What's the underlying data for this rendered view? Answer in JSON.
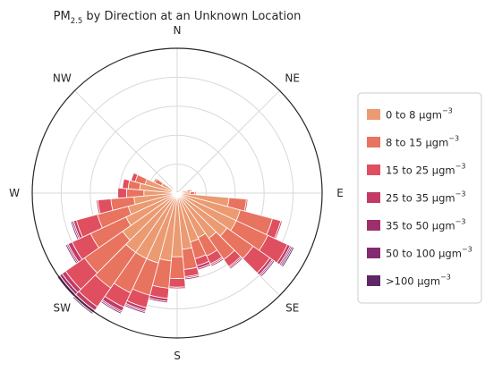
{
  "chart_data": {
    "type": "windrose",
    "title": {
      "prefix": "PM",
      "subscript": "2.5",
      "suffix": " by Direction at an Unknown Location"
    },
    "direction_labels": [
      "N",
      "NE",
      "E",
      "SE",
      "S",
      "SW",
      "W",
      "NW"
    ],
    "direction_angles": [
      0,
      45,
      90,
      135,
      180,
      225,
      270,
      315
    ],
    "radial_range": [
      0,
      10
    ],
    "radial_gridlines": [
      2,
      4,
      6,
      8,
      10
    ],
    "grid": true,
    "legend_position": "right",
    "bin_width_deg": 10,
    "bins": [
      {
        "label": "0 to 8 µgm",
        "sup": "−3",
        "color": "#eb9a72"
      },
      {
        "label": "8 to 15 µgm",
        "sup": "−3",
        "color": "#e8735f"
      },
      {
        "label": "15 to 25 µgm",
        "sup": "−3",
        "color": "#df4f5f"
      },
      {
        "label": "25 to 35 µgm",
        "sup": "−3",
        "color": "#c43a66"
      },
      {
        "label": "35 to 50 µgm",
        "sup": "−3",
        "color": "#9e2f6b"
      },
      {
        "label": "50 to 100 µgm",
        "sup": "−3",
        "color": "#832b6e"
      },
      {
        "label": ">100 µgm",
        "sup": "−3",
        "color": "#5e2765"
      }
    ],
    "directions": [
      {
        "angle": 70,
        "values": [
          0.3,
          0.2,
          0,
          0,
          0,
          0,
          0
        ]
      },
      {
        "angle": 80,
        "values": [
          0.7,
          0.2,
          0.1,
          0,
          0,
          0,
          0
        ]
      },
      {
        "angle": 90,
        "values": [
          0.9,
          0.3,
          0.1,
          0,
          0,
          0,
          0
        ]
      },
      {
        "angle": 100,
        "values": [
          3.6,
          1.2,
          0.1,
          0,
          0,
          0,
          0
        ]
      },
      {
        "angle": 110,
        "values": [
          4.5,
          2.3,
          0.6,
          0.1,
          0,
          0,
          0
        ]
      },
      {
        "angle": 120,
        "values": [
          4.5,
          2.4,
          1.5,
          0.2,
          0.1,
          0.1,
          0.1
        ]
      },
      {
        "angle": 130,
        "values": [
          4.2,
          2.2,
          1.4,
          0.2,
          0.1,
          0.1,
          0
        ]
      },
      {
        "angle": 140,
        "values": [
          3.8,
          1.8,
          0.6,
          0.1,
          0.1,
          0,
          0
        ]
      },
      {
        "angle": 150,
        "values": [
          3.4,
          1.4,
          0.6,
          0.1,
          0.1,
          0,
          0
        ]
      },
      {
        "angle": 160,
        "values": [
          3.5,
          1.2,
          0.5,
          0.2,
          0.1,
          0,
          0
        ]
      },
      {
        "angle": 170,
        "values": [
          3.9,
          1.4,
          0.5,
          0.1,
          0.1,
          0,
          0
        ]
      },
      {
        "angle": 180,
        "values": [
          4.4,
          1.5,
          0.6,
          0.1,
          0,
          0,
          0
        ]
      },
      {
        "angle": 190,
        "values": [
          4.7,
          1.9,
          0.7,
          0.2,
          0.1,
          0,
          0
        ]
      },
      {
        "angle": 200,
        "values": [
          5.0,
          2.3,
          0.9,
          0.2,
          0.1,
          0.1,
          0
        ]
      },
      {
        "angle": 210,
        "values": [
          5.0,
          2.6,
          1.1,
          0.3,
          0.1,
          0.1,
          0
        ]
      },
      {
        "angle": 220,
        "values": [
          5.0,
          3.0,
          1.6,
          0.3,
          0.1,
          0.1,
          0.1
        ]
      },
      {
        "angle": 230,
        "values": [
          4.6,
          3.2,
          1.6,
          0.3,
          0.2,
          0.1,
          0.1
        ]
      },
      {
        "angle": 240,
        "values": [
          3.9,
          2.7,
          1.4,
          0.3,
          0.1,
          0.1,
          0
        ]
      },
      {
        "angle": 250,
        "values": [
          3.5,
          2.2,
          1.5,
          0.2,
          0.1,
          0.1,
          0
        ]
      },
      {
        "angle": 260,
        "values": [
          3.0,
          1.6,
          0.9,
          0.1,
          0,
          0,
          0
        ]
      },
      {
        "angle": 270,
        "values": [
          2.3,
          1.2,
          0.6,
          0,
          0,
          0,
          0
        ]
      },
      {
        "angle": 280,
        "values": [
          2.6,
          0.8,
          0.4,
          0,
          0,
          0,
          0
        ]
      },
      {
        "angle": 290,
        "values": [
          2.3,
          0.7,
          0.3,
          0,
          0,
          0,
          0
        ]
      },
      {
        "angle": 300,
        "values": [
          1.2,
          0.5,
          0.1,
          0,
          0,
          0,
          0
        ]
      },
      {
        "angle": 310,
        "values": [
          0.3,
          0.1,
          0,
          0,
          0,
          0,
          0
        ]
      }
    ]
  }
}
